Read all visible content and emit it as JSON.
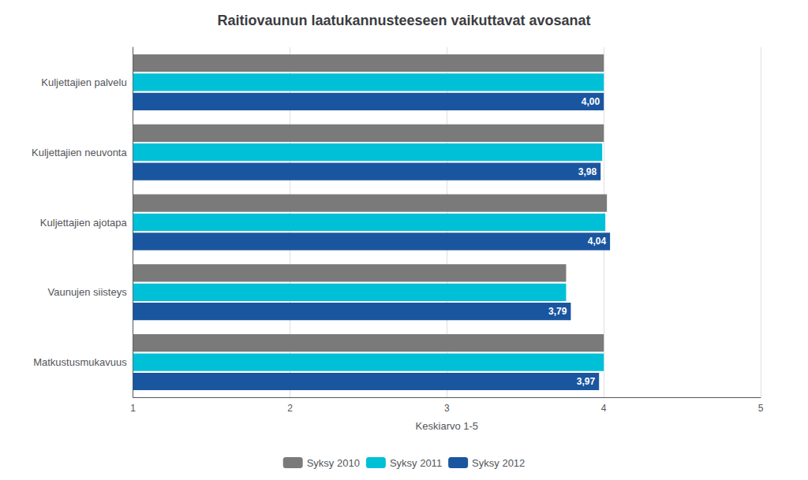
{
  "chart_data": {
    "type": "bar",
    "orientation": "horizontal",
    "title": "Raitiovaunun laatukannusteeseen vaikuttavat avosanat",
    "categories": [
      "Kuljettajien palvelu",
      "Kuljettajien neuvonta",
      "Kuljettajien ajotapa",
      "Vaunujen siisteys",
      "Matkustusmukavuus"
    ],
    "series": [
      {
        "name": "Syksy 2010",
        "color": "#7a7a7a",
        "values": [
          4.0,
          4.0,
          4.02,
          3.76,
          4.0
        ]
      },
      {
        "name": "Syksy 2011",
        "color": "#00c0d8",
        "values": [
          4.0,
          3.99,
          4.01,
          3.76,
          4.0
        ]
      },
      {
        "name": "Syksy 2012",
        "color": "#1a56a0",
        "values": [
          4.0,
          3.98,
          4.04,
          3.79,
          3.97
        ],
        "data_labels": true,
        "value_labels": [
          "4,00",
          "3,98",
          "4,04",
          "3,79",
          "3,97"
        ]
      }
    ],
    "xlabel": "Keskiarvo 1-5",
    "xlim": [
      1,
      5
    ],
    "xticks": [
      1,
      2,
      3,
      4,
      5
    ],
    "grid": true,
    "legend": "bottom"
  }
}
